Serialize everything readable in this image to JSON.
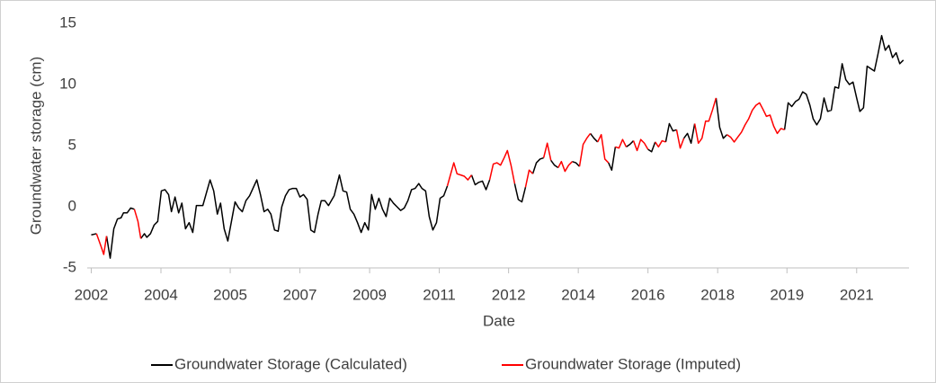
{
  "chart_data": {
    "type": "line",
    "y_label": "Groundwater storage (cm)",
    "x_label": "Date",
    "xlim": [
      2001.9,
      2022.3
    ],
    "ylim": [
      -5,
      15
    ],
    "yticks": [
      -5,
      0,
      5,
      10,
      15
    ],
    "xticks": [
      {
        "value": 2002,
        "label": "2002"
      },
      {
        "value": 2003.73,
        "label": "2004"
      },
      {
        "value": 2005.45,
        "label": "2005"
      },
      {
        "value": 2007.18,
        "label": "2007"
      },
      {
        "value": 2008.91,
        "label": "2009"
      },
      {
        "value": 2010.64,
        "label": "2011"
      },
      {
        "value": 2012.36,
        "label": "2012"
      },
      {
        "value": 2014.09,
        "label": "2014"
      },
      {
        "value": 2015.82,
        "label": "2016"
      },
      {
        "value": 2017.55,
        "label": "2018"
      },
      {
        "value": 2019.27,
        "label": "2019"
      },
      {
        "value": 2021,
        "label": "2021"
      }
    ],
    "grid": false,
    "legend": "bottom",
    "x": [
      2002.0,
      2002.13,
      2002.25,
      2002.31,
      2002.38,
      2002.47,
      2002.56,
      2002.65,
      2002.74,
      2002.8,
      2002.89,
      2002.98,
      2003.07,
      2003.16,
      2003.23,
      2003.32,
      2003.38,
      2003.47,
      2003.56,
      2003.65,
      2003.74,
      2003.83,
      2003.92,
      2003.99,
      2004.08,
      2004.17,
      2004.25,
      2004.34,
      2004.43,
      2004.52,
      2004.61,
      2004.77,
      2004.95,
      2005.04,
      2005.13,
      2005.21,
      2005.3,
      2005.39,
      2005.48,
      2005.57,
      2005.66,
      2005.75,
      2005.84,
      2005.93,
      2006.11,
      2006.2,
      2006.29,
      2006.38,
      2006.46,
      2006.55,
      2006.64,
      2006.73,
      2006.82,
      2006.91,
      2007.0,
      2007.09,
      2007.18,
      2007.27,
      2007.36,
      2007.45,
      2007.54,
      2007.63,
      2007.71,
      2007.8,
      2007.89,
      2008.03,
      2008.16,
      2008.25,
      2008.34,
      2008.43,
      2008.52,
      2008.61,
      2008.7,
      2008.79,
      2008.88,
      2008.96,
      2009.05,
      2009.14,
      2009.23,
      2009.32,
      2009.41,
      2009.5,
      2009.59,
      2009.68,
      2009.77,
      2009.86,
      2009.95,
      2010.04,
      2010.13,
      2010.21,
      2010.3,
      2010.39,
      2010.48,
      2010.57,
      2010.66,
      2010.75,
      2010.84,
      2011.0,
      2011.08,
      2011.17,
      2011.26,
      2011.35,
      2011.44,
      2011.53,
      2011.62,
      2011.71,
      2011.8,
      2011.89,
      2011.98,
      2012.07,
      2012.16,
      2012.25,
      2012.33,
      2012.42,
      2012.51,
      2012.6,
      2012.69,
      2012.78,
      2012.87,
      2012.96,
      2013.05,
      2013.14,
      2013.23,
      2013.32,
      2013.41,
      2013.5,
      2013.59,
      2013.67,
      2013.76,
      2013.85,
      2013.94,
      2014.03,
      2014.12,
      2014.21,
      2014.3,
      2014.39,
      2014.48,
      2014.57,
      2014.66,
      2014.75,
      2014.84,
      2014.92,
      2015.01,
      2015.1,
      2015.19,
      2015.28,
      2015.37,
      2015.46,
      2015.55,
      2015.64,
      2015.73,
      2015.82,
      2015.91,
      2016.0,
      2016.08,
      2016.17,
      2016.26,
      2016.35,
      2016.44,
      2016.53,
      2016.62,
      2016.71,
      2016.8,
      2016.89,
      2016.98,
      2017.07,
      2017.16,
      2017.25,
      2017.33,
      2017.42,
      2017.51,
      2017.6,
      2017.69,
      2017.78,
      2017.87,
      2017.96,
      2018.05,
      2018.14,
      2018.23,
      2018.32,
      2018.41,
      2018.5,
      2018.59,
      2018.67,
      2018.76,
      2018.85,
      2018.94,
      2019.03,
      2019.12,
      2019.21,
      2019.3,
      2019.39,
      2019.48,
      2019.57,
      2019.66,
      2019.75,
      2019.84,
      2019.92,
      2020.01,
      2020.1,
      2020.19,
      2020.28,
      2020.37,
      2020.46,
      2020.55,
      2020.64,
      2020.73,
      2020.82,
      2020.91,
      2021.0,
      2021.08,
      2021.17,
      2021.26,
      2021.35,
      2021.44,
      2021.53,
      2021.62,
      2021.71,
      2021.8,
      2021.89,
      2021.98,
      2022.07,
      2022.16
    ],
    "series": [
      {
        "name": "Groundwater Storage (Calculated)",
        "color": "#000000",
        "values": [
          -2.3,
          -2.2,
          null,
          null,
          -2.4,
          -4.2,
          -1.8,
          -1.0,
          -0.9,
          -0.5,
          -0.5,
          -0.1,
          -0.2,
          null,
          -2.6,
          -2.2,
          -2.5,
          -2.2,
          -1.5,
          -1.2,
          1.3,
          1.4,
          1.0,
          -0.4,
          0.8,
          -0.5,
          0.3,
          -1.8,
          -1.3,
          -2.1,
          0.1,
          0.1,
          2.2,
          1.3,
          -0.6,
          0.3,
          -1.8,
          -2.8,
          -1.2,
          0.4,
          -0.1,
          -0.4,
          0.5,
          0.9,
          2.2,
          1.0,
          -0.4,
          -0.2,
          -0.6,
          -1.9,
          -2.0,
          0.0,
          0.9,
          1.4,
          1.5,
          1.5,
          0.8,
          1.0,
          0.6,
          -1.9,
          -2.1,
          -0.6,
          0.5,
          0.5,
          0.1,
          0.9,
          2.6,
          1.3,
          1.2,
          -0.2,
          -0.6,
          -1.3,
          -2.1,
          -1.3,
          -1.9,
          1.0,
          -0.2,
          0.7,
          -0.2,
          -0.8,
          0.7,
          0.3,
          0.0,
          -0.3,
          -0.1,
          0.5,
          1.4,
          1.5,
          1.9,
          1.5,
          1.3,
          -0.8,
          -1.9,
          -1.3,
          0.7,
          0.9,
          1.7,
          null,
          null,
          null,
          null,
          null,
          2.6,
          1.8,
          2.0,
          2.1,
          1.4,
          2.2,
          null,
          null,
          null,
          null,
          null,
          null,
          1.9,
          0.6,
          0.4,
          1.6,
          null,
          2.7,
          3.6,
          3.9,
          4.0,
          null,
          3.8,
          3.4,
          3.2,
          null,
          null,
          null,
          3.7,
          3.6,
          3.3,
          null,
          null,
          6.0,
          5.6,
          5.3,
          null,
          null,
          3.6,
          3.0,
          4.9,
          null,
          null,
          4.9,
          5.1,
          5.4,
          null,
          null,
          null,
          4.7,
          4.5,
          5.3,
          null,
          null,
          5.3,
          6.8,
          6.2,
          6.3,
          null,
          5.6,
          6.0,
          5.2,
          6.8,
          null,
          null,
          null,
          null,
          null,
          8.9,
          6.5,
          5.6,
          5.9,
          null,
          null,
          null,
          null,
          null,
          null,
          null,
          null,
          null,
          null,
          null,
          null,
          null,
          null,
          null,
          6.3,
          8.5,
          8.2,
          8.6,
          8.8,
          9.4,
          9.2,
          8.3,
          7.2,
          6.7,
          7.2,
          8.9,
          7.8,
          7.9,
          9.8,
          9.7,
          11.7,
          10.4,
          10.0,
          10.2,
          8.9,
          7.8,
          8.1,
          11.5,
          11.3,
          11.1,
          12.5,
          14.0,
          12.8,
          13.2,
          12.2,
          12.6,
          11.7,
          12.0
        ]
      },
      {
        "name": "Groundwater Storage (Imputed)",
        "color": "#ff0000",
        "values": [
          null,
          -2.2,
          -3.3,
          -3.9,
          -2.4,
          null,
          null,
          null,
          null,
          null,
          null,
          null,
          -0.2,
          -1.2,
          -2.6,
          null,
          null,
          null,
          null,
          null,
          null,
          null,
          null,
          null,
          null,
          null,
          null,
          null,
          null,
          null,
          null,
          null,
          null,
          null,
          null,
          null,
          null,
          null,
          null,
          null,
          null,
          null,
          null,
          null,
          null,
          null,
          null,
          null,
          null,
          null,
          null,
          null,
          null,
          null,
          null,
          null,
          null,
          null,
          null,
          null,
          null,
          null,
          null,
          null,
          null,
          null,
          null,
          null,
          null,
          null,
          null,
          null,
          null,
          null,
          null,
          null,
          null,
          null,
          null,
          null,
          null,
          null,
          null,
          null,
          null,
          null,
          null,
          null,
          null,
          null,
          null,
          null,
          null,
          null,
          null,
          null,
          1.7,
          3.6,
          2.7,
          2.6,
          2.5,
          2.2,
          2.6,
          null,
          null,
          null,
          null,
          2.2,
          3.5,
          3.6,
          3.4,
          4.0,
          4.6,
          3.4,
          1.9,
          null,
          null,
          1.6,
          3.0,
          2.7,
          null,
          null,
          4.0,
          5.2,
          3.8,
          null,
          3.2,
          3.7,
          2.9,
          3.4,
          3.7,
          null,
          3.3,
          5.1,
          5.6,
          6.0,
          null,
          5.3,
          5.9,
          3.9,
          3.6,
          null,
          4.9,
          4.8,
          5.5,
          4.9,
          null,
          5.4,
          4.6,
          5.5,
          5.2,
          4.7,
          null,
          5.3,
          4.9,
          5.4,
          5.3,
          null,
          null,
          6.3,
          4.8,
          5.6,
          null,
          null,
          6.8,
          5.2,
          5.6,
          7.0,
          7.0,
          7.9,
          8.9,
          null,
          null,
          5.9,
          5.7,
          5.3,
          5.7,
          6.1,
          6.7,
          7.2,
          7.9,
          8.3,
          8.5,
          8.0,
          7.4,
          7.5,
          6.6,
          6.0,
          6.4,
          6.3,
          null,
          null,
          null,
          null,
          null,
          null,
          null,
          null,
          null,
          null,
          null,
          null,
          null,
          null,
          null,
          null,
          null,
          null,
          null,
          null,
          null,
          null,
          null,
          null,
          null,
          null,
          null,
          null,
          null,
          null,
          null,
          null,
          null
        ]
      }
    ]
  }
}
